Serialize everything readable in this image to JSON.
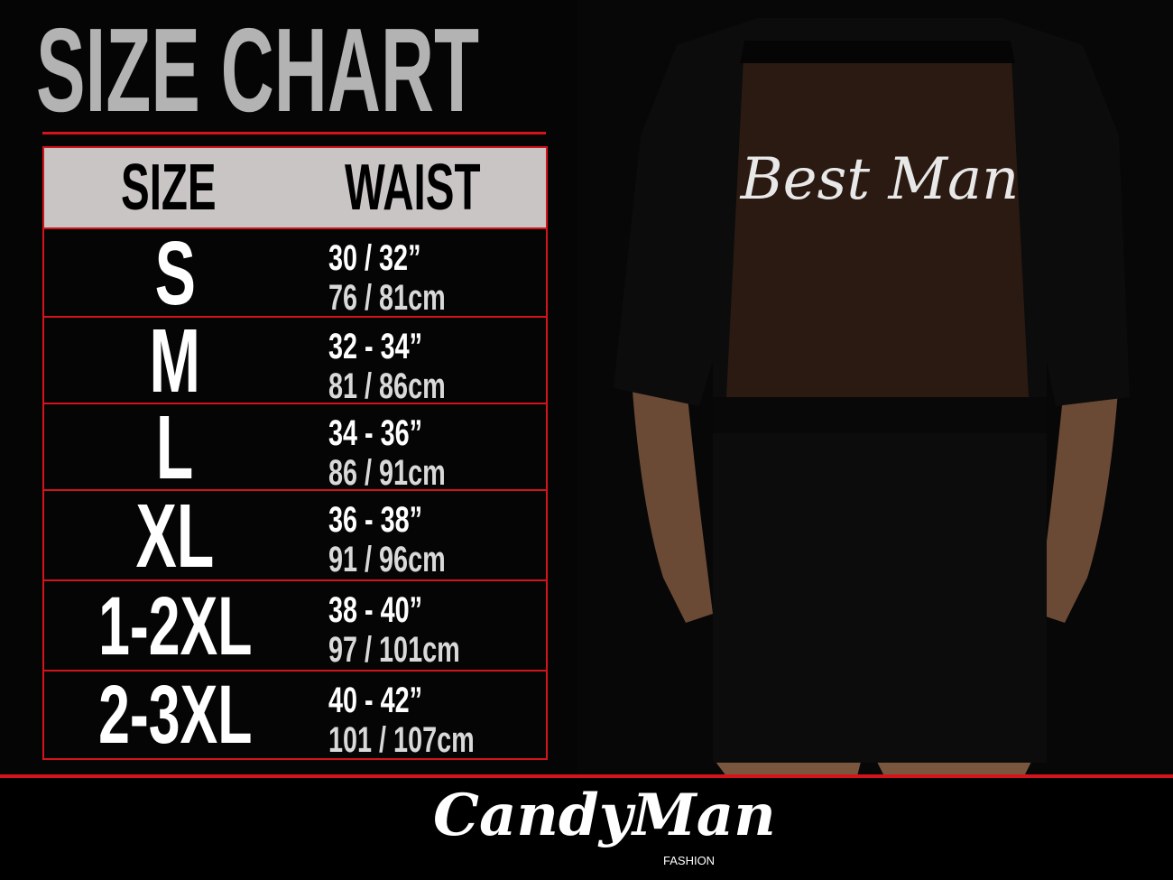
{
  "title": "SIZE CHART",
  "table": {
    "headers": {
      "size": "SIZE",
      "waist": "WAIST"
    },
    "rows": [
      {
        "size": "S",
        "inches": "30 / 32”",
        "cm": "76 / 81cm"
      },
      {
        "size": "M",
        "inches": "32 - 34”",
        "cm": "81 / 86cm"
      },
      {
        "size": "L",
        "inches": "34 - 36”",
        "cm": "86 / 91cm"
      },
      {
        "size": "XL",
        "inches": "36 - 38”",
        "cm": "91 / 96cm"
      },
      {
        "size": "1-2XL",
        "inches": "38 - 40”",
        "cm": "97 / 101cm"
      },
      {
        "size": "2-3XL",
        "inches": "40 - 42”",
        "cm": "101 / 107cm"
      }
    ]
  },
  "garment_print": "Best Man",
  "brand": {
    "name": "CandyMan",
    "sub": "FASHION"
  },
  "colors": {
    "accent": "#d4141a",
    "header_bg": "#c9c5c5",
    "title": "#b3b3b3"
  }
}
